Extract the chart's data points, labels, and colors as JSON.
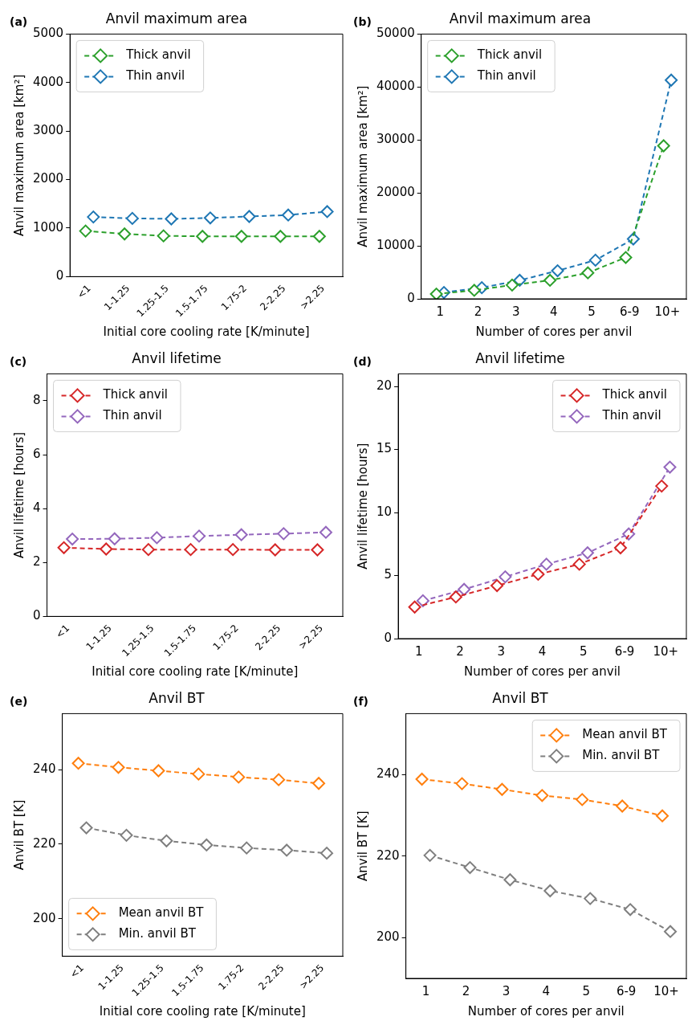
{
  "chart_data": [
    {
      "type": "line",
      "title": "Anvil maximum area",
      "annotations": [
        "(a)"
      ],
      "xlabel": "Initial core cooling rate [K/minute]",
      "ylabel": "Anvil maximum area [km²]",
      "categories": [
        "<1",
        "1-1.25",
        "1.25-1.5",
        "1.5-1.75",
        "1.75-2",
        "2-2.25",
        ">2.25"
      ],
      "ylim": [
        0,
        5000
      ],
      "yticks": [
        0,
        1000,
        2000,
        3000,
        4000,
        5000
      ],
      "legend": "top left",
      "marker": "diamond",
      "line_style": "dashed",
      "series": [
        {
          "name": "Thick anvil",
          "color": "#2ca02c",
          "values": [
            940,
            880,
            840,
            830,
            830,
            830,
            830
          ]
        },
        {
          "name": "Thin anvil",
          "color": "#1f77b4",
          "values": [
            1230,
            1200,
            1190,
            1210,
            1240,
            1270,
            1340
          ]
        }
      ]
    },
    {
      "type": "line",
      "title": "Anvil maximum area",
      "annotations": [
        "(b)"
      ],
      "xlabel": "Number of cores per anvil",
      "ylabel": "Anvil maximum area [km²]",
      "categories": [
        "1",
        "2",
        "3",
        "4",
        "5",
        "6-9",
        "10+"
      ],
      "ylim": [
        0,
        50000
      ],
      "yticks": [
        0,
        10000,
        20000,
        30000,
        40000,
        50000
      ],
      "legend": "top left",
      "marker": "diamond",
      "line_style": "dashed",
      "series": [
        {
          "name": "Thick anvil",
          "color": "#2ca02c",
          "values": [
            900,
            1600,
            2600,
            3500,
            4900,
            7800,
            28900
          ]
        },
        {
          "name": "Thin anvil",
          "color": "#1f77b4",
          "values": [
            1200,
            2100,
            3500,
            5300,
            7300,
            11300,
            41300
          ]
        }
      ]
    },
    {
      "type": "line",
      "title": "Anvil lifetime",
      "annotations": [
        "(c)"
      ],
      "xlabel": "Initial core cooling rate [K/minute]",
      "ylabel": "Anvil lifetime [hours]",
      "categories": [
        "<1",
        "1-1.25",
        "1.25-1.5",
        "1.5-1.75",
        "1.75-2",
        "2-2.25",
        ">2.25"
      ],
      "ylim": [
        0,
        9
      ],
      "yticks": [
        0,
        2,
        4,
        6,
        8
      ],
      "legend": "top left",
      "marker": "diamond",
      "line_style": "dashed",
      "series": [
        {
          "name": "Thick anvil",
          "color": "#d62728",
          "values": [
            2.55,
            2.5,
            2.48,
            2.48,
            2.48,
            2.47,
            2.47
          ]
        },
        {
          "name": "Thin anvil",
          "color": "#9467bd",
          "values": [
            2.87,
            2.88,
            2.92,
            2.98,
            3.03,
            3.07,
            3.12
          ]
        }
      ]
    },
    {
      "type": "line",
      "title": "Anvil lifetime",
      "annotations": [
        "(d)"
      ],
      "xlabel": "Number of cores per anvil",
      "ylabel": "Anvil lifetime [hours]",
      "categories": [
        "1",
        "2",
        "3",
        "4",
        "5",
        "6-9",
        "10+"
      ],
      "ylim": [
        0,
        21
      ],
      "yticks": [
        0,
        5,
        10,
        15,
        20
      ],
      "legend": "top right",
      "marker": "diamond",
      "line_style": "dashed",
      "series": [
        {
          "name": "Thick anvil",
          "color": "#d62728",
          "values": [
            2.5,
            3.3,
            4.2,
            5.1,
            5.9,
            7.2,
            12.1
          ]
        },
        {
          "name": "Thin anvil",
          "color": "#9467bd",
          "values": [
            3.0,
            3.9,
            4.9,
            5.9,
            6.8,
            8.3,
            13.6
          ]
        }
      ]
    },
    {
      "type": "line",
      "title": "Anvil BT",
      "annotations": [
        "(e)"
      ],
      "xlabel": "Initial core cooling rate [K/minute]",
      "ylabel": "Anvil BT [K]",
      "categories": [
        "<1",
        "1-1.25",
        "1.25-1.5",
        "1.5-1.75",
        "1.75-2",
        "2-2.25",
        ">2.25"
      ],
      "ylim": [
        190,
        255
      ],
      "yticks": [
        200,
        220,
        240
      ],
      "legend": "bottom left",
      "marker": "diamond",
      "line_style": "dashed",
      "series": [
        {
          "name": "Mean anvil BT",
          "color": "#ff7f0e",
          "values": [
            241.7,
            240.6,
            239.7,
            238.8,
            238.0,
            237.3,
            236.3
          ]
        },
        {
          "name": "Min. anvil BT",
          "color": "#7f7f7f",
          "values": [
            224.4,
            222.4,
            220.9,
            219.8,
            219.0,
            218.4,
            217.6
          ]
        }
      ]
    },
    {
      "type": "line",
      "title": "Anvil BT",
      "annotations": [
        "(f)"
      ],
      "xlabel": "Number of cores per anvil",
      "ylabel": "Anvil BT [K]",
      "categories": [
        "1",
        "2",
        "3",
        "4",
        "5",
        "6-9",
        "10+"
      ],
      "ylim": [
        190,
        255
      ],
      "yticks": [
        200,
        220,
        240
      ],
      "legend": "top right",
      "marker": "diamond",
      "line_style": "dashed",
      "series": [
        {
          "name": "Mean anvil BT",
          "color": "#ff7f0e",
          "values": [
            238.9,
            237.8,
            236.4,
            234.9,
            233.9,
            232.3,
            229.9
          ]
        },
        {
          "name": "Min. anvil BT",
          "color": "#7f7f7f",
          "values": [
            220.2,
            217.2,
            214.2,
            211.5,
            209.6,
            206.9,
            201.5
          ]
        }
      ]
    }
  ]
}
